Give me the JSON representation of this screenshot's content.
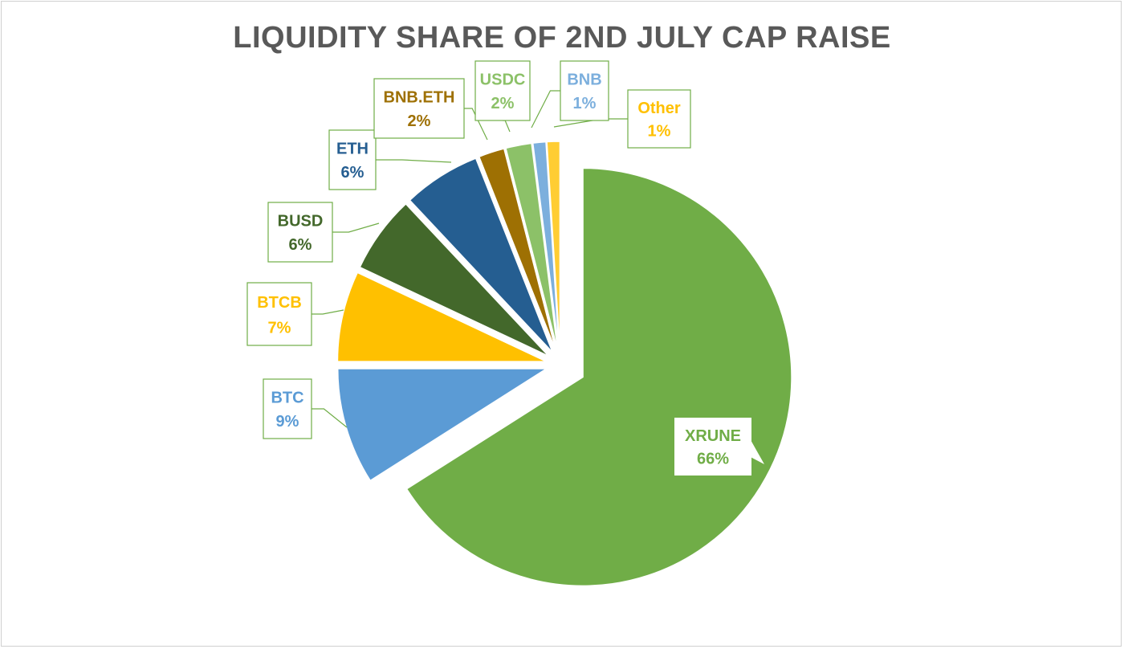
{
  "chart_data": {
    "type": "pie",
    "title": "LIQUIDITY SHARE OF 2ND JULY CAP RAISE",
    "slices": [
      {
        "label": "XRUNE",
        "value": 66,
        "display": "66%",
        "color": "#70AD47"
      },
      {
        "label": "BTC",
        "value": 9,
        "display": "9%",
        "color": "#5B9BD5"
      },
      {
        "label": "BTCB",
        "value": 7,
        "display": "7%",
        "color": "#FFC000"
      },
      {
        "label": "BUSD",
        "value": 6,
        "display": "6%",
        "color": "#43682B"
      },
      {
        "label": "ETH",
        "value": 6,
        "display": "6%",
        "color": "#255E91"
      },
      {
        "label": "BNB.ETH",
        "value": 2,
        "display": "2%",
        "color": "#9E7003"
      },
      {
        "label": "USDC",
        "value": 2,
        "display": "2%",
        "color": "#8CC168"
      },
      {
        "label": "BNB",
        "value": 1,
        "display": "1%",
        "color": "#7CAFDD"
      },
      {
        "label": "Other",
        "value": 1,
        "display": "1%",
        "color": "#FFCD33"
      }
    ],
    "label_border_color": "#70AD47",
    "legend": "none"
  }
}
